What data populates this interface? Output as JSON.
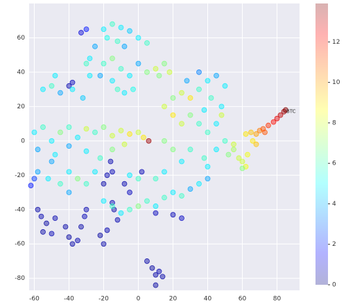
{
  "chart_data": {
    "type": "scatter",
    "colormap": "jet",
    "grid": true,
    "xlim": [
      -63,
      93
    ],
    "ylim": [
      -87,
      80
    ],
    "xticks": [
      -60,
      -40,
      -20,
      0,
      20,
      40,
      60,
      80
    ],
    "yticks": [
      -80,
      -60,
      -40,
      -20,
      0,
      20,
      40,
      60
    ],
    "colorbar": {
      "lim": [
        0,
        13.9
      ],
      "ticks": [
        0,
        2,
        4,
        6,
        8,
        10,
        12
      ]
    },
    "annotations": [
      {
        "text": "BTC",
        "x": 85,
        "y": 18
      }
    ],
    "points": [
      {
        "x": -58,
        "y": -40,
        "c": 0.5
      },
      {
        "x": -56,
        "y": -44,
        "c": 0.6
      },
      {
        "x": -53,
        "y": -48,
        "c": 0.4
      },
      {
        "x": -55,
        "y": -53,
        "c": 0.5
      },
      {
        "x": -50,
        "y": -54,
        "c": 0.7
      },
      {
        "x": -48,
        "y": -45,
        "c": 0.6
      },
      {
        "x": -42,
        "y": -50,
        "c": 0.5
      },
      {
        "x": -40,
        "y": -56,
        "c": 0.4
      },
      {
        "x": -38,
        "y": -60,
        "c": 0.5
      },
      {
        "x": -35,
        "y": -58,
        "c": 0.6
      },
      {
        "x": -33,
        "y": -50,
        "c": 0.5
      },
      {
        "x": -31,
        "y": -44,
        "c": 0.7
      },
      {
        "x": -30,
        "y": -40,
        "c": 0.6
      },
      {
        "x": -22,
        "y": -55,
        "c": 0.4
      },
      {
        "x": -20,
        "y": -60,
        "c": 0.5
      },
      {
        "x": -18,
        "y": -52,
        "c": 0.6
      },
      {
        "x": -14,
        "y": -40,
        "c": 0.5
      },
      {
        "x": -12,
        "y": -46,
        "c": 0.6
      },
      {
        "x": -15,
        "y": -36,
        "c": 0.7
      },
      {
        "x": 5,
        "y": -70,
        "c": 0.5
      },
      {
        "x": 8,
        "y": -74,
        "c": 0.4
      },
      {
        "x": 10,
        "y": -78,
        "c": 0.5
      },
      {
        "x": 12,
        "y": -76,
        "c": 0.6
      },
      {
        "x": 14,
        "y": -79,
        "c": 0.5
      },
      {
        "x": 10,
        "y": -84,
        "c": 0.4
      },
      {
        "x": -18,
        "y": -20,
        "c": 0.6
      },
      {
        "x": -20,
        "y": -25,
        "c": 0.5
      },
      {
        "x": -15,
        "y": -18,
        "c": 0.7
      },
      {
        "x": -40,
        "y": 32,
        "c": 0.6
      },
      {
        "x": -38,
        "y": 34,
        "c": 0.8
      },
      {
        "x": -33,
        "y": 63,
        "c": 1.2
      },
      {
        "x": -30,
        "y": 65,
        "c": 2
      },
      {
        "x": -16,
        "y": -12,
        "c": 0.6
      },
      {
        "x": -60,
        "y": -22,
        "c": 2.5
      },
      {
        "x": -62,
        "y": -26,
        "c": 2
      },
      {
        "x": 10,
        "y": -42,
        "c": 0.8
      },
      {
        "x": 20,
        "y": -43,
        "c": 0.7
      },
      {
        "x": 25,
        "y": -45,
        "c": 0.9
      },
      {
        "x": -5,
        "y": -30,
        "c": 0.8
      },
      {
        "x": -8,
        "y": -25,
        "c": 0.6
      },
      {
        "x": 2,
        "y": -18,
        "c": 0.7
      },
      {
        "x": 62,
        "y": 4,
        "c": 9
      },
      {
        "x": 65,
        "y": 5,
        "c": 9.5
      },
      {
        "x": 68,
        "y": 4,
        "c": 10
      },
      {
        "x": 70,
        "y": 6,
        "c": 10.5
      },
      {
        "x": 72,
        "y": 7,
        "c": 11
      },
      {
        "x": 75,
        "y": 9,
        "c": 11.5
      },
      {
        "x": 78,
        "y": 11,
        "c": 12
      },
      {
        "x": 80,
        "y": 13,
        "c": 12.5
      },
      {
        "x": 82,
        "y": 15,
        "c": 13
      },
      {
        "x": 84,
        "y": 17,
        "c": 13.5
      },
      {
        "x": 85,
        "y": 18,
        "c": 13.8
      },
      {
        "x": 73,
        "y": 5,
        "c": 11
      },
      {
        "x": 66,
        "y": 0,
        "c": 9
      },
      {
        "x": 68,
        "y": -2,
        "c": 9.5
      },
      {
        "x": 63,
        "y": -8,
        "c": 8.5
      },
      {
        "x": 60,
        "y": -12,
        "c": 8
      },
      {
        "x": 62,
        "y": -15,
        "c": 8.5
      },
      {
        "x": 58,
        "y": -10,
        "c": 8
      },
      {
        "x": 55,
        "y": -5,
        "c": 7.5
      },
      {
        "x": 6,
        "y": 0,
        "c": 13.5
      },
      {
        "x": 60,
        "y": -16,
        "c": 7
      },
      {
        "x": -20,
        "y": 65,
        "c": 5
      },
      {
        "x": -15,
        "y": 68,
        "c": 6
      },
      {
        "x": -10,
        "y": 66,
        "c": 5
      },
      {
        "x": -5,
        "y": 64,
        "c": 4.5
      },
      {
        "x": -18,
        "y": 60,
        "c": 5.5
      },
      {
        "x": -12,
        "y": 58,
        "c": 6
      },
      {
        "x": -8,
        "y": 55,
        "c": 4
      },
      {
        "x": 0,
        "y": 60,
        "c": 5
      },
      {
        "x": 5,
        "y": 57,
        "c": 6
      },
      {
        "x": -25,
        "y": 55,
        "c": 4
      },
      {
        "x": -28,
        "y": 48,
        "c": 5
      },
      {
        "x": -20,
        "y": 45,
        "c": 6
      },
      {
        "x": -15,
        "y": 48,
        "c": 7
      },
      {
        "x": -10,
        "y": 42,
        "c": 6
      },
      {
        "x": -5,
        "y": 38,
        "c": 5
      },
      {
        "x": 0,
        "y": 45,
        "c": 4
      },
      {
        "x": 5,
        "y": 40,
        "c": 7
      },
      {
        "x": 10,
        "y": 42,
        "c": 8
      },
      {
        "x": 12,
        "y": 38,
        "c": 7
      },
      {
        "x": 15,
        "y": 45,
        "c": 7
      },
      {
        "x": 18,
        "y": 40,
        "c": 8
      },
      {
        "x": -12,
        "y": 30,
        "c": 6
      },
      {
        "x": -8,
        "y": 28,
        "c": 5
      },
      {
        "x": -3,
        "y": 30,
        "c": 5.5
      },
      {
        "x": -22,
        "y": 38,
        "c": 4
      },
      {
        "x": -15,
        "y": 35,
        "c": 5
      },
      {
        "x": -55,
        "y": 30,
        "c": 5
      },
      {
        "x": -50,
        "y": 32,
        "c": 6
      },
      {
        "x": -45,
        "y": 28,
        "c": 4
      },
      {
        "x": -38,
        "y": 30,
        "c": 5
      },
      {
        "x": -32,
        "y": 25,
        "c": 4.5
      },
      {
        "x": -48,
        "y": 38,
        "c": 5
      },
      {
        "x": -30,
        "y": 45,
        "c": 6
      },
      {
        "x": -28,
        "y": 38,
        "c": 5
      },
      {
        "x": -60,
        "y": 5,
        "c": 5
      },
      {
        "x": -55,
        "y": 8,
        "c": 6
      },
      {
        "x": -50,
        "y": 0,
        "c": 5
      },
      {
        "x": -45,
        "y": 5,
        "c": 7
      },
      {
        "x": -40,
        "y": 8,
        "c": 6
      },
      {
        "x": -35,
        "y": 2,
        "c": 5
      },
      {
        "x": -30,
        "y": 7,
        "c": 8
      },
      {
        "x": -25,
        "y": 5,
        "c": 6
      },
      {
        "x": -20,
        "y": 8,
        "c": 7
      },
      {
        "x": -15,
        "y": 3,
        "c": 8
      },
      {
        "x": -10,
        "y": 6,
        "c": 8
      },
      {
        "x": -5,
        "y": 4,
        "c": 9
      },
      {
        "x": 0,
        "y": 5,
        "c": 8
      },
      {
        "x": 3,
        "y": 2,
        "c": 9
      },
      {
        "x": -58,
        "y": -5,
        "c": 4
      },
      {
        "x": -48,
        "y": -8,
        "c": 5
      },
      {
        "x": -40,
        "y": -3,
        "c": 4
      },
      {
        "x": -30,
        "y": -6,
        "c": 5
      },
      {
        "x": -22,
        "y": -10,
        "c": 6
      },
      {
        "x": -15,
        "y": -5,
        "c": 7
      },
      {
        "x": -8,
        "y": -2,
        "c": 8
      },
      {
        "x": -58,
        "y": -18,
        "c": 4
      },
      {
        "x": -52,
        "y": -22,
        "c": 5
      },
      {
        "x": -45,
        "y": -25,
        "c": 6
      },
      {
        "x": -40,
        "y": -18,
        "c": 5
      },
      {
        "x": -35,
        "y": -22,
        "c": 7
      },
      {
        "x": -30,
        "y": -25,
        "c": 6
      },
      {
        "x": -25,
        "y": -18,
        "c": 5
      },
      {
        "x": -50,
        "y": -12,
        "c": 4
      },
      {
        "x": -40,
        "y": -30,
        "c": 4
      },
      {
        "x": -20,
        "y": -35,
        "c": 5
      },
      {
        "x": -15,
        "y": -38,
        "c": 6
      },
      {
        "x": -10,
        "y": -42,
        "c": 5
      },
      {
        "x": -5,
        "y": -40,
        "c": 6
      },
      {
        "x": 0,
        "y": -38,
        "c": 7
      },
      {
        "x": 5,
        "y": -35,
        "c": 6
      },
      {
        "x": 10,
        "y": -38,
        "c": 5
      },
      {
        "x": 15,
        "y": -33,
        "c": 6
      },
      {
        "x": 20,
        "y": -30,
        "c": 5
      },
      {
        "x": 25,
        "y": -32,
        "c": 6
      },
      {
        "x": 30,
        "y": -28,
        "c": 4
      },
      {
        "x": 35,
        "y": -25,
        "c": 5
      },
      {
        "x": 40,
        "y": -22,
        "c": 4
      },
      {
        "x": -5,
        "y": -20,
        "c": 5
      },
      {
        "x": 0,
        "y": -22,
        "c": 6
      },
      {
        "x": 10,
        "y": -22,
        "c": 6
      },
      {
        "x": 15,
        "y": -18,
        "c": 5
      },
      {
        "x": 20,
        "y": 25,
        "c": 7
      },
      {
        "x": 25,
        "y": 28,
        "c": 8
      },
      {
        "x": 30,
        "y": 25,
        "c": 9
      },
      {
        "x": 35,
        "y": 30,
        "c": 6
      },
      {
        "x": 40,
        "y": 35,
        "c": 5
      },
      {
        "x": 45,
        "y": 38,
        "c": 4
      },
      {
        "x": 50,
        "y": 32,
        "c": 5
      },
      {
        "x": 42,
        "y": 25,
        "c": 6
      },
      {
        "x": 48,
        "y": 20,
        "c": 5
      },
      {
        "x": 30,
        "y": 15,
        "c": 7
      },
      {
        "x": 25,
        "y": 10,
        "c": 8
      },
      {
        "x": 20,
        "y": 15,
        "c": 9
      },
      {
        "x": 15,
        "y": 20,
        "c": 8
      },
      {
        "x": 35,
        "y": 10,
        "c": 6
      },
      {
        "x": 40,
        "y": 5,
        "c": 6
      },
      {
        "x": 45,
        "y": 10,
        "c": 5
      },
      {
        "x": 50,
        "y": 0,
        "c": 6
      },
      {
        "x": 45,
        "y": -5,
        "c": 5
      },
      {
        "x": 38,
        "y": -10,
        "c": 6
      },
      {
        "x": 30,
        "y": -5,
        "c": 6
      },
      {
        "x": 25,
        "y": -12,
        "c": 5
      },
      {
        "x": 20,
        "y": -5,
        "c": 7
      },
      {
        "x": 15,
        "y": 0,
        "c": 7
      },
      {
        "x": 40,
        "y": -15,
        "c": 5
      },
      {
        "x": 52,
        "y": -8,
        "c": 7
      },
      {
        "x": 48,
        "y": 15,
        "c": 8
      },
      {
        "x": 55,
        "y": -2,
        "c": 8
      },
      {
        "x": 38,
        "y": 18,
        "c": 5
      },
      {
        "x": 28,
        "y": 35,
        "c": 4
      },
      {
        "x": 35,
        "y": 40,
        "c": 3.5
      }
    ]
  }
}
